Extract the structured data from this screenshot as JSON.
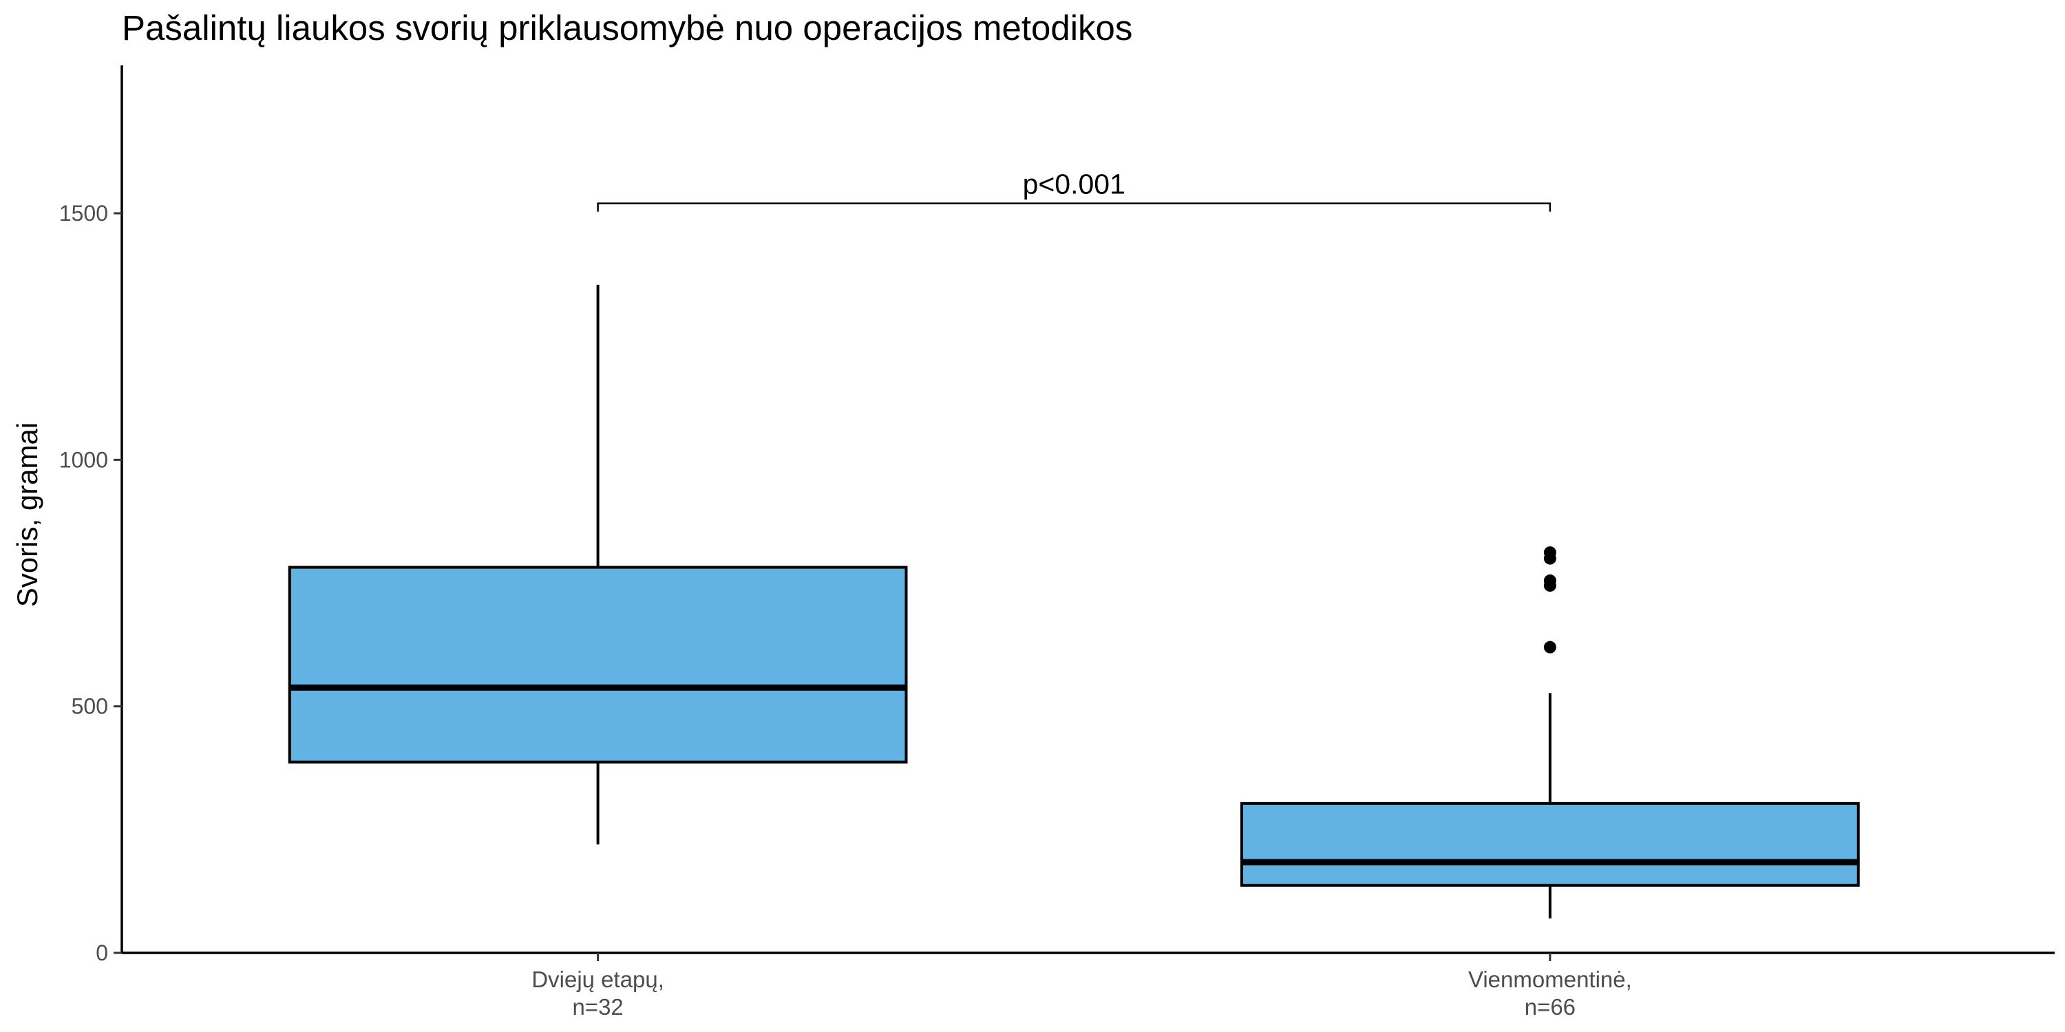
{
  "chart_data": {
    "type": "box",
    "title": "Pašalintų liaukos svorių priklausomybė nuo operacijos metodikos",
    "xlabel": "",
    "ylabel": "Svoris, gramai",
    "ylim": [
      0,
      1800
    ],
    "yticks": [
      0,
      500,
      1000,
      1500
    ],
    "grid": false,
    "fill_color": "#62B3E4",
    "categories": [
      {
        "label_line1": "Dviejų etapų,",
        "label_line2": "n=32"
      },
      {
        "label_line1": "Vienmomentinė,",
        "label_line2": "n=66"
      }
    ],
    "boxes": [
      {
        "whisker_low": 220,
        "q1": 387,
        "median": 538,
        "q3": 782,
        "whisker_high": 1355,
        "outliers": []
      },
      {
        "whisker_low": 70,
        "q1": 137,
        "median": 184,
        "q3": 303,
        "whisker_high": 527,
        "outliers": [
          620,
          745,
          755,
          800,
          812
        ]
      }
    ],
    "annotation": {
      "text": "p<0.001",
      "y": 1520
    }
  }
}
